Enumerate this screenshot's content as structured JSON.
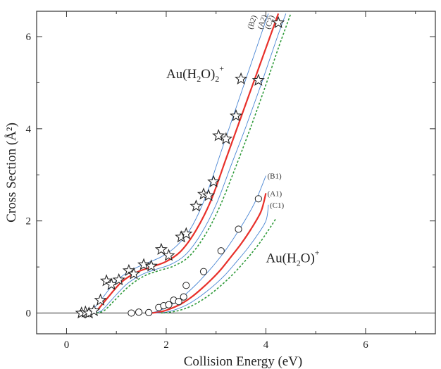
{
  "chart_data": {
    "type": "scatter",
    "xlabel": "Collision Energy (eV)",
    "ylabel": "Cross Section (Å²)",
    "xlim": [
      -0.6,
      7.4
    ],
    "ylim": [
      -0.45,
      6.55
    ],
    "x_ticks": [
      0,
      2,
      4,
      6
    ],
    "y_ticks": [
      0,
      2,
      4,
      6
    ],
    "grid": false,
    "baseline_y": 0,
    "annotations": [
      {
        "id": "h2o2",
        "base": "Au(H",
        "sub1": "2",
        "mid": "O)",
        "sub2": "2",
        "sup": "+",
        "x": 2.0,
        "y": 5.1
      },
      {
        "id": "h2o",
        "base": "Au(H",
        "sub1": "2",
        "mid": "O)",
        "sub2": "",
        "sup": "+",
        "x": 4.0,
        "y": 1.1
      }
    ],
    "series": [
      {
        "label": "(B2)",
        "role": "upper",
        "color": "#4a86d4",
        "style": "solid",
        "points": [
          [
            0.35,
            0
          ],
          [
            0.5,
            0.05
          ],
          [
            0.7,
            0.3
          ],
          [
            1.0,
            0.7
          ],
          [
            1.3,
            0.93
          ],
          [
            1.6,
            1.08
          ],
          [
            1.9,
            1.22
          ],
          [
            2.2,
            1.45
          ],
          [
            2.5,
            1.85
          ],
          [
            2.8,
            2.55
          ],
          [
            3.1,
            3.5
          ],
          [
            3.4,
            4.45
          ],
          [
            3.7,
            5.4
          ],
          [
            4.0,
            6.35
          ],
          [
            4.05,
            6.5
          ]
        ]
      },
      {
        "label": "(A2)",
        "role": "fit",
        "color": "#e8302a",
        "style": "solid",
        "points": [
          [
            0.45,
            0
          ],
          [
            0.6,
            0.05
          ],
          [
            0.8,
            0.3
          ],
          [
            1.1,
            0.67
          ],
          [
            1.4,
            0.88
          ],
          [
            1.7,
            1.0
          ],
          [
            2.0,
            1.12
          ],
          [
            2.3,
            1.35
          ],
          [
            2.6,
            1.8
          ],
          [
            2.9,
            2.45
          ],
          [
            3.2,
            3.35
          ],
          [
            3.5,
            4.25
          ],
          [
            3.8,
            5.15
          ],
          [
            4.1,
            6.05
          ],
          [
            4.25,
            6.5
          ]
        ]
      },
      {
        "label": "(C2)",
        "role": "lower",
        "color": "#4a86d4",
        "style": "solid",
        "points": [
          [
            0.55,
            0
          ],
          [
            0.7,
            0.05
          ],
          [
            0.9,
            0.28
          ],
          [
            1.2,
            0.62
          ],
          [
            1.5,
            0.83
          ],
          [
            1.8,
            0.95
          ],
          [
            2.1,
            1.06
          ],
          [
            2.4,
            1.28
          ],
          [
            2.7,
            1.72
          ],
          [
            3.0,
            2.35
          ],
          [
            3.3,
            3.2
          ],
          [
            3.6,
            4.05
          ],
          [
            3.9,
            4.95
          ],
          [
            4.2,
            5.9
          ],
          [
            4.4,
            6.5
          ]
        ]
      },
      {
        "label": "",
        "role": "dotted",
        "color": "#2f9a3a",
        "style": "dashed",
        "points": [
          [
            0.6,
            0
          ],
          [
            0.75,
            0.05
          ],
          [
            0.95,
            0.26
          ],
          [
            1.25,
            0.58
          ],
          [
            1.55,
            0.8
          ],
          [
            1.85,
            0.92
          ],
          [
            2.15,
            1.02
          ],
          [
            2.45,
            1.22
          ],
          [
            2.75,
            1.64
          ],
          [
            3.05,
            2.25
          ],
          [
            3.35,
            3.05
          ],
          [
            3.65,
            3.9
          ],
          [
            3.95,
            4.8
          ],
          [
            4.25,
            5.75
          ],
          [
            4.5,
            6.5
          ]
        ]
      },
      {
        "label": "(B1)",
        "role": "upper",
        "color": "#4a86d4",
        "style": "solid",
        "points": [
          [
            1.6,
            0
          ],
          [
            1.8,
            0.03
          ],
          [
            2.0,
            0.12
          ],
          [
            2.2,
            0.25
          ],
          [
            2.4,
            0.42
          ],
          [
            2.6,
            0.62
          ],
          [
            2.8,
            0.85
          ],
          [
            3.0,
            1.1
          ],
          [
            3.2,
            1.38
          ],
          [
            3.4,
            1.7
          ],
          [
            3.6,
            2.05
          ],
          [
            3.8,
            2.45
          ],
          [
            4.0,
            2.98
          ]
        ]
      },
      {
        "label": "(A1)",
        "role": "fit",
        "color": "#e8302a",
        "style": "solid",
        "points": [
          [
            1.7,
            0
          ],
          [
            1.9,
            0.03
          ],
          [
            2.1,
            0.1
          ],
          [
            2.3,
            0.2
          ],
          [
            2.5,
            0.34
          ],
          [
            2.7,
            0.52
          ],
          [
            2.9,
            0.72
          ],
          [
            3.1,
            0.95
          ],
          [
            3.3,
            1.22
          ],
          [
            3.5,
            1.5
          ],
          [
            3.7,
            1.82
          ],
          [
            3.9,
            2.2
          ],
          [
            4.0,
            2.6
          ]
        ]
      },
      {
        "label": "(C1)",
        "role": "lower",
        "color": "#4a86d4",
        "style": "solid",
        "points": [
          [
            1.8,
            0
          ],
          [
            2.0,
            0.02
          ],
          [
            2.2,
            0.08
          ],
          [
            2.4,
            0.17
          ],
          [
            2.6,
            0.3
          ],
          [
            2.8,
            0.46
          ],
          [
            3.0,
            0.64
          ],
          [
            3.2,
            0.85
          ],
          [
            3.4,
            1.1
          ],
          [
            3.6,
            1.36
          ],
          [
            3.8,
            1.65
          ],
          [
            4.0,
            2.0
          ],
          [
            4.05,
            2.35
          ]
        ]
      },
      {
        "label": "",
        "role": "dotted",
        "color": "#2f9a3a",
        "style": "dashed",
        "points": [
          [
            1.9,
            0
          ],
          [
            2.1,
            0.02
          ],
          [
            2.3,
            0.07
          ],
          [
            2.5,
            0.15
          ],
          [
            2.7,
            0.27
          ],
          [
            2.9,
            0.42
          ],
          [
            3.1,
            0.6
          ],
          [
            3.3,
            0.8
          ],
          [
            3.5,
            1.03
          ],
          [
            3.7,
            1.28
          ],
          [
            3.9,
            1.56
          ],
          [
            4.1,
            1.88
          ],
          [
            4.2,
            2.05
          ]
        ]
      }
    ],
    "markers": [
      {
        "name": "Au(H2O)2+ data",
        "shape": "star",
        "points": [
          [
            0.3,
            0
          ],
          [
            0.38,
            0.02
          ],
          [
            0.45,
            0
          ],
          [
            0.55,
            0.05
          ],
          [
            0.68,
            0.28
          ],
          [
            0.8,
            0.7
          ],
          [
            0.9,
            0.62
          ],
          [
            1.05,
            0.72
          ],
          [
            1.25,
            0.92
          ],
          [
            1.35,
            0.85
          ],
          [
            1.55,
            1.05
          ],
          [
            1.7,
            1.02
          ],
          [
            1.9,
            1.38
          ],
          [
            2.05,
            1.25
          ],
          [
            2.3,
            1.65
          ],
          [
            2.4,
            1.72
          ],
          [
            2.6,
            2.32
          ],
          [
            2.75,
            2.58
          ],
          [
            2.85,
            2.55
          ],
          [
            2.95,
            2.85
          ],
          [
            3.05,
            3.85
          ],
          [
            3.2,
            3.78
          ],
          [
            3.4,
            4.28
          ],
          [
            3.5,
            5.08
          ],
          [
            3.85,
            5.05
          ],
          [
            4.25,
            6.3
          ]
        ]
      },
      {
        "name": "Au(H2O)+ data",
        "shape": "circle",
        "points": [
          [
            1.3,
            0
          ],
          [
            1.45,
            0.02
          ],
          [
            1.65,
            0.01
          ],
          [
            1.85,
            0.12
          ],
          [
            1.95,
            0.16
          ],
          [
            2.05,
            0.18
          ],
          [
            2.15,
            0.28
          ],
          [
            2.25,
            0.25
          ],
          [
            2.35,
            0.35
          ],
          [
            2.4,
            0.6
          ],
          [
            2.75,
            0.9
          ],
          [
            3.1,
            1.35
          ],
          [
            3.45,
            1.82
          ],
          [
            3.85,
            2.48
          ]
        ]
      }
    ]
  }
}
